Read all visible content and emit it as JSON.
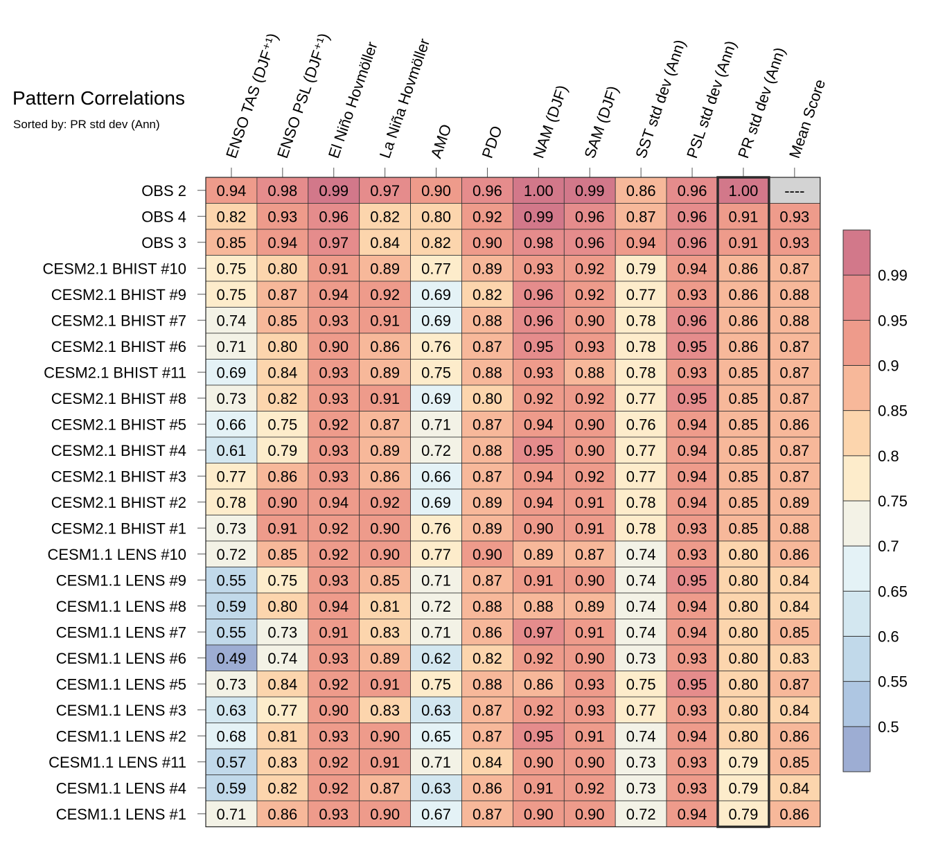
{
  "chart_data": {
    "type": "heatmap",
    "title": "Pattern Correlations",
    "subtitle": "Sorted by: PR std dev (Ann)",
    "columns": [
      "ENSO TAS (DJF⁺¹)",
      "ENSO PSL (DJF⁺¹)",
      "El Niño Hovmöller",
      "La Niña Hovmöller",
      "AMO",
      "PDO",
      "NAM (DJF)",
      "SAM (DJF)",
      "SST std dev (Ann)",
      "PSL std dev (Ann)",
      "PR std dev (Ann)",
      "Mean Score"
    ],
    "rows": [
      "OBS 2",
      "OBS 4",
      "OBS 3",
      "CESM2.1 BHIST #10",
      "CESM2.1 BHIST #9",
      "CESM2.1 BHIST #7",
      "CESM2.1 BHIST #6",
      "CESM2.1 BHIST #11",
      "CESM2.1 BHIST #8",
      "CESM2.1 BHIST #5",
      "CESM2.1 BHIST #4",
      "CESM2.1 BHIST #3",
      "CESM2.1 BHIST #2",
      "CESM2.1 BHIST #1",
      "CESM1.1 LENS #10",
      "CESM1.1 LENS #9",
      "CESM1.1 LENS #8",
      "CESM1.1 LENS #7",
      "CESM1.1 LENS #6",
      "CESM1.1 LENS #5",
      "CESM1.1 LENS #3",
      "CESM1.1 LENS #2",
      "CESM1.1 LENS #11",
      "CESM1.1 LENS #4",
      "CESM1.1 LENS #1"
    ],
    "values": [
      [
        "0.94",
        "0.98",
        "0.99",
        "0.97",
        "0.90",
        "0.96",
        "1.00",
        "0.99",
        "0.86",
        "0.96",
        "1.00",
        "----"
      ],
      [
        "0.82",
        "0.93",
        "0.96",
        "0.82",
        "0.80",
        "0.92",
        "0.99",
        "0.96",
        "0.87",
        "0.96",
        "0.91",
        "0.93"
      ],
      [
        "0.85",
        "0.94",
        "0.97",
        "0.84",
        "0.82",
        "0.90",
        "0.98",
        "0.96",
        "0.94",
        "0.96",
        "0.91",
        "0.93"
      ],
      [
        "0.75",
        "0.80",
        "0.91",
        "0.89",
        "0.77",
        "0.89",
        "0.93",
        "0.92",
        "0.79",
        "0.94",
        "0.86",
        "0.87"
      ],
      [
        "0.75",
        "0.87",
        "0.94",
        "0.92",
        "0.69",
        "0.82",
        "0.96",
        "0.92",
        "0.77",
        "0.93",
        "0.86",
        "0.88"
      ],
      [
        "0.74",
        "0.85",
        "0.93",
        "0.91",
        "0.69",
        "0.88",
        "0.96",
        "0.90",
        "0.78",
        "0.96",
        "0.86",
        "0.88"
      ],
      [
        "0.71",
        "0.80",
        "0.90",
        "0.86",
        "0.76",
        "0.87",
        "0.95",
        "0.93",
        "0.78",
        "0.95",
        "0.86",
        "0.87"
      ],
      [
        "0.69",
        "0.84",
        "0.93",
        "0.89",
        "0.75",
        "0.88",
        "0.93",
        "0.88",
        "0.78",
        "0.93",
        "0.85",
        "0.87"
      ],
      [
        "0.73",
        "0.82",
        "0.93",
        "0.91",
        "0.69",
        "0.80",
        "0.92",
        "0.92",
        "0.77",
        "0.95",
        "0.85",
        "0.87"
      ],
      [
        "0.66",
        "0.75",
        "0.92",
        "0.87",
        "0.71",
        "0.87",
        "0.94",
        "0.90",
        "0.76",
        "0.94",
        "0.85",
        "0.86"
      ],
      [
        "0.61",
        "0.79",
        "0.93",
        "0.89",
        "0.72",
        "0.88",
        "0.95",
        "0.90",
        "0.77",
        "0.94",
        "0.85",
        "0.87"
      ],
      [
        "0.77",
        "0.86",
        "0.93",
        "0.86",
        "0.66",
        "0.87",
        "0.94",
        "0.92",
        "0.77",
        "0.94",
        "0.85",
        "0.87"
      ],
      [
        "0.78",
        "0.90",
        "0.94",
        "0.92",
        "0.69",
        "0.89",
        "0.94",
        "0.91",
        "0.78",
        "0.94",
        "0.85",
        "0.89"
      ],
      [
        "0.73",
        "0.91",
        "0.92",
        "0.90",
        "0.76",
        "0.89",
        "0.90",
        "0.91",
        "0.78",
        "0.93",
        "0.85",
        "0.88"
      ],
      [
        "0.72",
        "0.85",
        "0.92",
        "0.90",
        "0.77",
        "0.90",
        "0.89",
        "0.87",
        "0.74",
        "0.93",
        "0.80",
        "0.86"
      ],
      [
        "0.55",
        "0.75",
        "0.93",
        "0.85",
        "0.71",
        "0.87",
        "0.91",
        "0.90",
        "0.74",
        "0.95",
        "0.80",
        "0.84"
      ],
      [
        "0.59",
        "0.80",
        "0.94",
        "0.81",
        "0.72",
        "0.88",
        "0.88",
        "0.89",
        "0.74",
        "0.94",
        "0.80",
        "0.84"
      ],
      [
        "0.55",
        "0.73",
        "0.91",
        "0.83",
        "0.71",
        "0.86",
        "0.97",
        "0.91",
        "0.74",
        "0.94",
        "0.80",
        "0.85"
      ],
      [
        "0.49",
        "0.74",
        "0.93",
        "0.89",
        "0.62",
        "0.82",
        "0.92",
        "0.90",
        "0.73",
        "0.93",
        "0.80",
        "0.83"
      ],
      [
        "0.73",
        "0.84",
        "0.92",
        "0.91",
        "0.75",
        "0.88",
        "0.86",
        "0.93",
        "0.75",
        "0.95",
        "0.80",
        "0.87"
      ],
      [
        "0.63",
        "0.77",
        "0.90",
        "0.83",
        "0.63",
        "0.87",
        "0.92",
        "0.93",
        "0.77",
        "0.93",
        "0.80",
        "0.84"
      ],
      [
        "0.68",
        "0.81",
        "0.93",
        "0.90",
        "0.65",
        "0.87",
        "0.95",
        "0.91",
        "0.74",
        "0.94",
        "0.80",
        "0.86"
      ],
      [
        "0.57",
        "0.83",
        "0.92",
        "0.91",
        "0.71",
        "0.84",
        "0.90",
        "0.90",
        "0.73",
        "0.93",
        "0.79",
        "0.85"
      ],
      [
        "0.59",
        "0.82",
        "0.92",
        "0.87",
        "0.63",
        "0.86",
        "0.91",
        "0.92",
        "0.73",
        "0.93",
        "0.79",
        "0.84"
      ],
      [
        "0.71",
        "0.86",
        "0.93",
        "0.90",
        "0.67",
        "0.87",
        "0.90",
        "0.90",
        "0.72",
        "0.94",
        "0.79",
        "0.86"
      ]
    ],
    "highlighted_column": "PR std dev (Ann)",
    "colorbar": {
      "levels": [
        0.5,
        0.55,
        0.6,
        0.65,
        0.7,
        0.75,
        0.8,
        0.85,
        0.9,
        0.95,
        0.99
      ],
      "tick_labels": [
        "0.5",
        "0.55",
        "0.6",
        "0.65",
        "0.7",
        "0.75",
        "0.8",
        "0.85",
        "0.9",
        "0.95",
        "0.99"
      ],
      "colors": [
        "#9dadd3",
        "#aec6e2",
        "#c1d9ea",
        "#d3e7f0",
        "#e4f2f6",
        "#f3f2e6",
        "#fdeccb",
        "#fcd5ad",
        "#f7b89a",
        "#ee9b8b",
        "#e58c8c",
        "#d2788a"
      ],
      "missing_color": "#d3d3d3"
    }
  }
}
